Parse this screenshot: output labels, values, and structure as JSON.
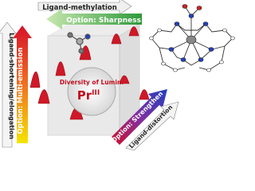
{
  "labels": {
    "top_arrow": "Ligand-methylation",
    "sharpness": "Option: Sharpness",
    "left_arrow": "Ligand-shortening/elongation",
    "multi_emission": "Option: Multi-emission",
    "diversity": "Diversity of Lumin.",
    "pr": "Pr",
    "pr_oxidation": "III",
    "strengthen": "Option: Strengthen",
    "distortion": "Ligand-distortion"
  }
}
